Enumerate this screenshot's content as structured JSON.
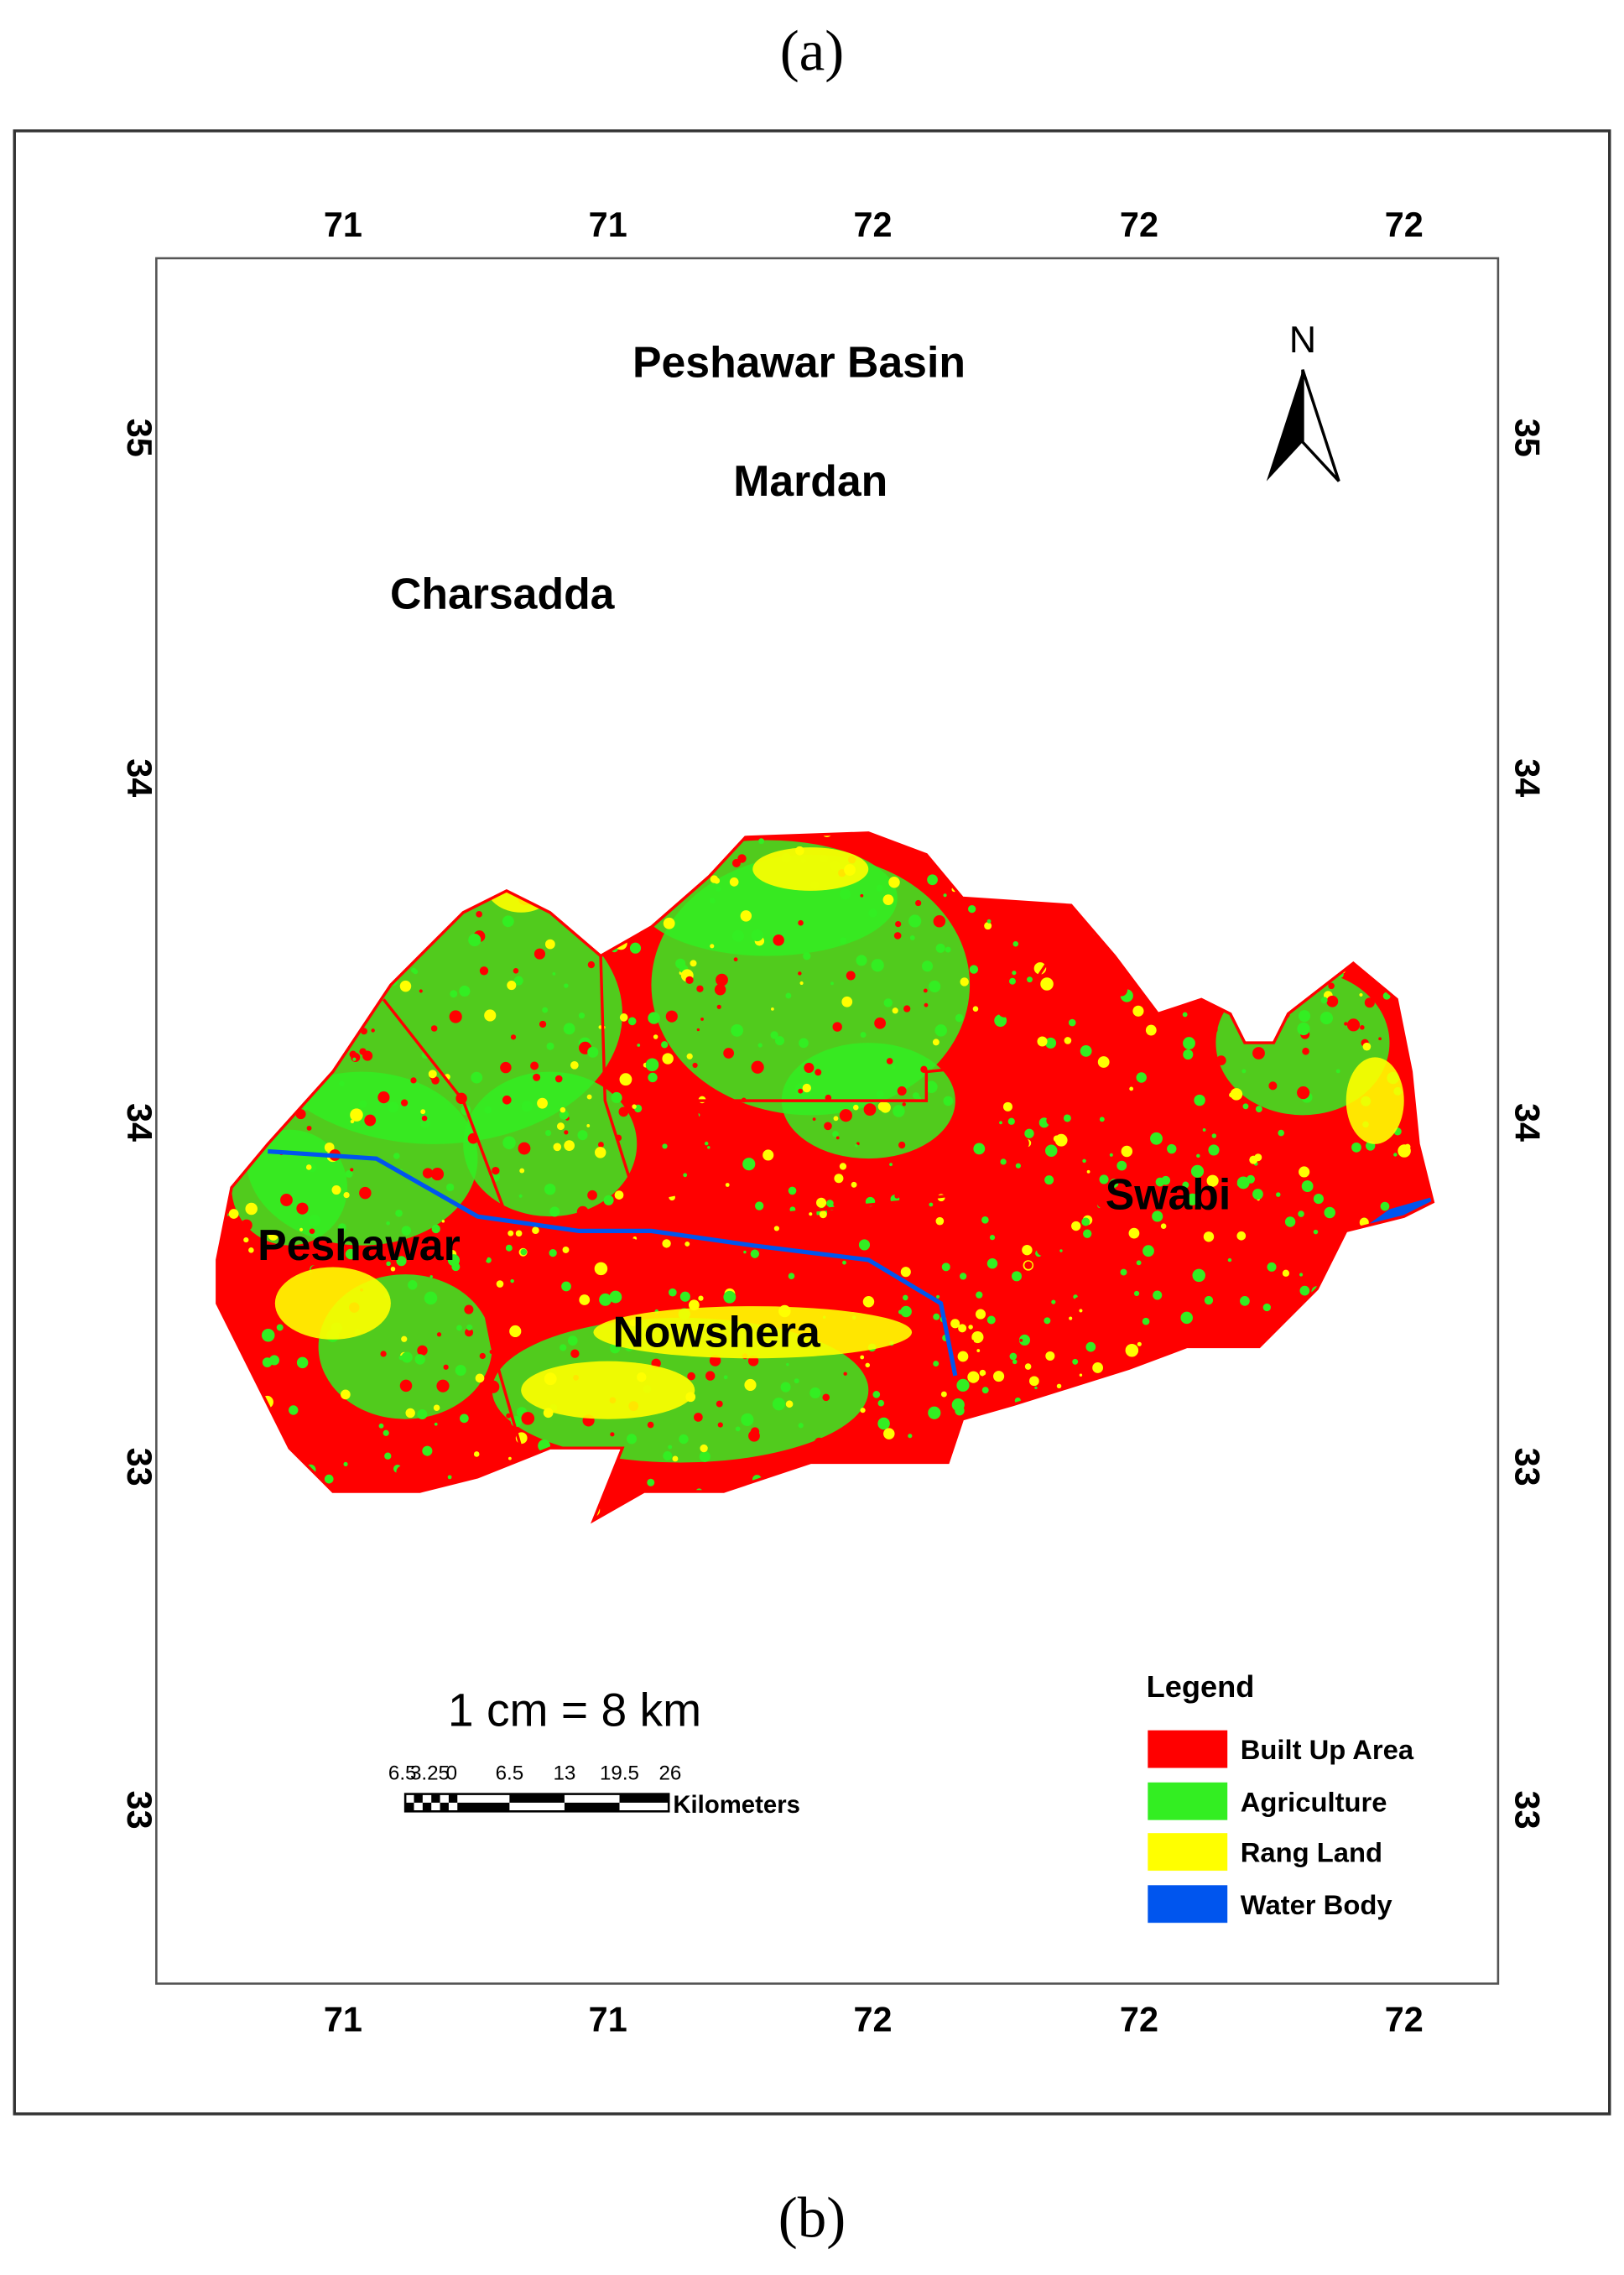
{
  "captions": {
    "top": "(a)",
    "bottom": "(b)"
  },
  "map": {
    "title": "Peshawar Basin",
    "north": "N",
    "axes": {
      "top": [
        "71",
        "71",
        "72",
        "72",
        "72"
      ],
      "bottom": [
        "71",
        "71",
        "72",
        "72",
        "72"
      ],
      "left": [
        "35",
        "34",
        "34",
        "33",
        "33"
      ],
      "right": [
        "35",
        "34",
        "34",
        "33",
        "33"
      ]
    },
    "districts": [
      "Mardan",
      "Charsadda",
      "Peshawar",
      "Nowshera",
      "Swabi"
    ],
    "scale": {
      "text": "1 cm = 8 km",
      "bar_labels": [
        "6.5",
        "3.25",
        "0",
        "6.5",
        "13",
        "19.5",
        "26"
      ],
      "unit": "Kilometers"
    },
    "legend": {
      "title": "Legend",
      "items": [
        {
          "label": "Built Up Area",
          "color": "#ff0000"
        },
        {
          "label": "Agriculture",
          "color": "#33ee22"
        },
        {
          "label": "Rang Land",
          "color": "#ffff00"
        },
        {
          "label": "Water Body",
          "color": "#0055ee"
        }
      ]
    }
  }
}
